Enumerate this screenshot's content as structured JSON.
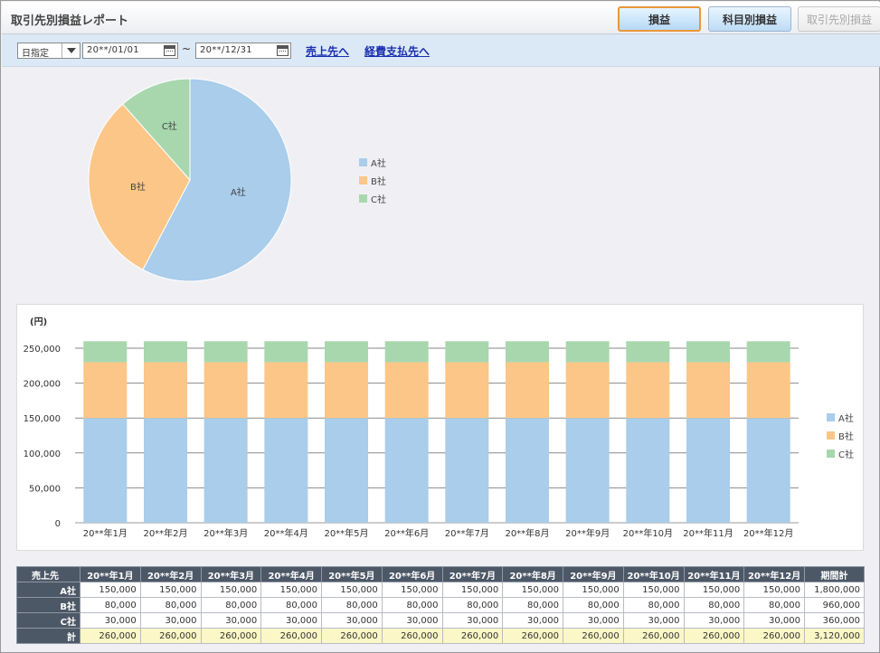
{
  "header": {
    "title": "取引先別損益レポート",
    "buttons": {
      "profit": "損益",
      "by_account": "科目別損益",
      "by_partner": "取引先別損益"
    }
  },
  "filter": {
    "period_select": "日指定",
    "start_date": "20**/01/01",
    "end_date": "20**/12/31",
    "tilde": "~",
    "link_sales": "売上先へ",
    "link_expense": "経費支払先へ"
  },
  "colors": {
    "A": "#a9cdea",
    "B": "#fbc687",
    "C": "#a8d7ae"
  },
  "chart_data": [
    {
      "type": "pie",
      "slices": [
        {
          "name": "A社",
          "value": 1800000
        },
        {
          "name": "B社",
          "value": 960000
        },
        {
          "name": "C社",
          "value": 360000
        }
      ],
      "legend": [
        "A社",
        "B社",
        "C社"
      ],
      "legend_position": "right"
    },
    {
      "type": "bar",
      "stacked": true,
      "ylabel": "(円)",
      "ylim": [
        0,
        250000
      ],
      "yticks": [
        "0",
        "50,000",
        "100,000",
        "150,000",
        "200,000",
        "250,000"
      ],
      "categories": [
        "20**年1月",
        "20**年2月",
        "20**年3月",
        "20**年4月",
        "20**年5月",
        "20**年6月",
        "20**年7月",
        "20**年8月",
        "20**年9月",
        "20**年10月",
        "20**年11月",
        "20**年12月"
      ],
      "series": [
        {
          "name": "A社",
          "values": [
            150000,
            150000,
            150000,
            150000,
            150000,
            150000,
            150000,
            150000,
            150000,
            150000,
            150000,
            150000
          ]
        },
        {
          "name": "B社",
          "values": [
            80000,
            80000,
            80000,
            80000,
            80000,
            80000,
            80000,
            80000,
            80000,
            80000,
            80000,
            80000
          ]
        },
        {
          "name": "C社",
          "values": [
            30000,
            30000,
            30000,
            30000,
            30000,
            30000,
            30000,
            30000,
            30000,
            30000,
            30000,
            30000
          ]
        }
      ],
      "legend_position": "right",
      "grid": true
    }
  ],
  "table": {
    "corner": "売上先",
    "columns": [
      "20**年1月",
      "20**年2月",
      "20**年3月",
      "20**年4月",
      "20**年5月",
      "20**年6月",
      "20**年7月",
      "20**年8月",
      "20**年9月",
      "20**年10月",
      "20**年11月",
      "20**年12月",
      "期間計"
    ],
    "rows": [
      {
        "label": "A社",
        "cells": [
          "150,000",
          "150,000",
          "150,000",
          "150,000",
          "150,000",
          "150,000",
          "150,000",
          "150,000",
          "150,000",
          "150,000",
          "150,000",
          "150,000",
          "1,800,000"
        ]
      },
      {
        "label": "B社",
        "cells": [
          "80,000",
          "80,000",
          "80,000",
          "80,000",
          "80,000",
          "80,000",
          "80,000",
          "80,000",
          "80,000",
          "80,000",
          "80,000",
          "80,000",
          "960,000"
        ]
      },
      {
        "label": "C社",
        "cells": [
          "30,000",
          "30,000",
          "30,000",
          "30,000",
          "30,000",
          "30,000",
          "30,000",
          "30,000",
          "30,000",
          "30,000",
          "30,000",
          "30,000",
          "360,000"
        ]
      },
      {
        "label": "計",
        "cells": [
          "260,000",
          "260,000",
          "260,000",
          "260,000",
          "260,000",
          "260,000",
          "260,000",
          "260,000",
          "260,000",
          "260,000",
          "260,000",
          "260,000",
          "3,120,000"
        ]
      }
    ]
  }
}
